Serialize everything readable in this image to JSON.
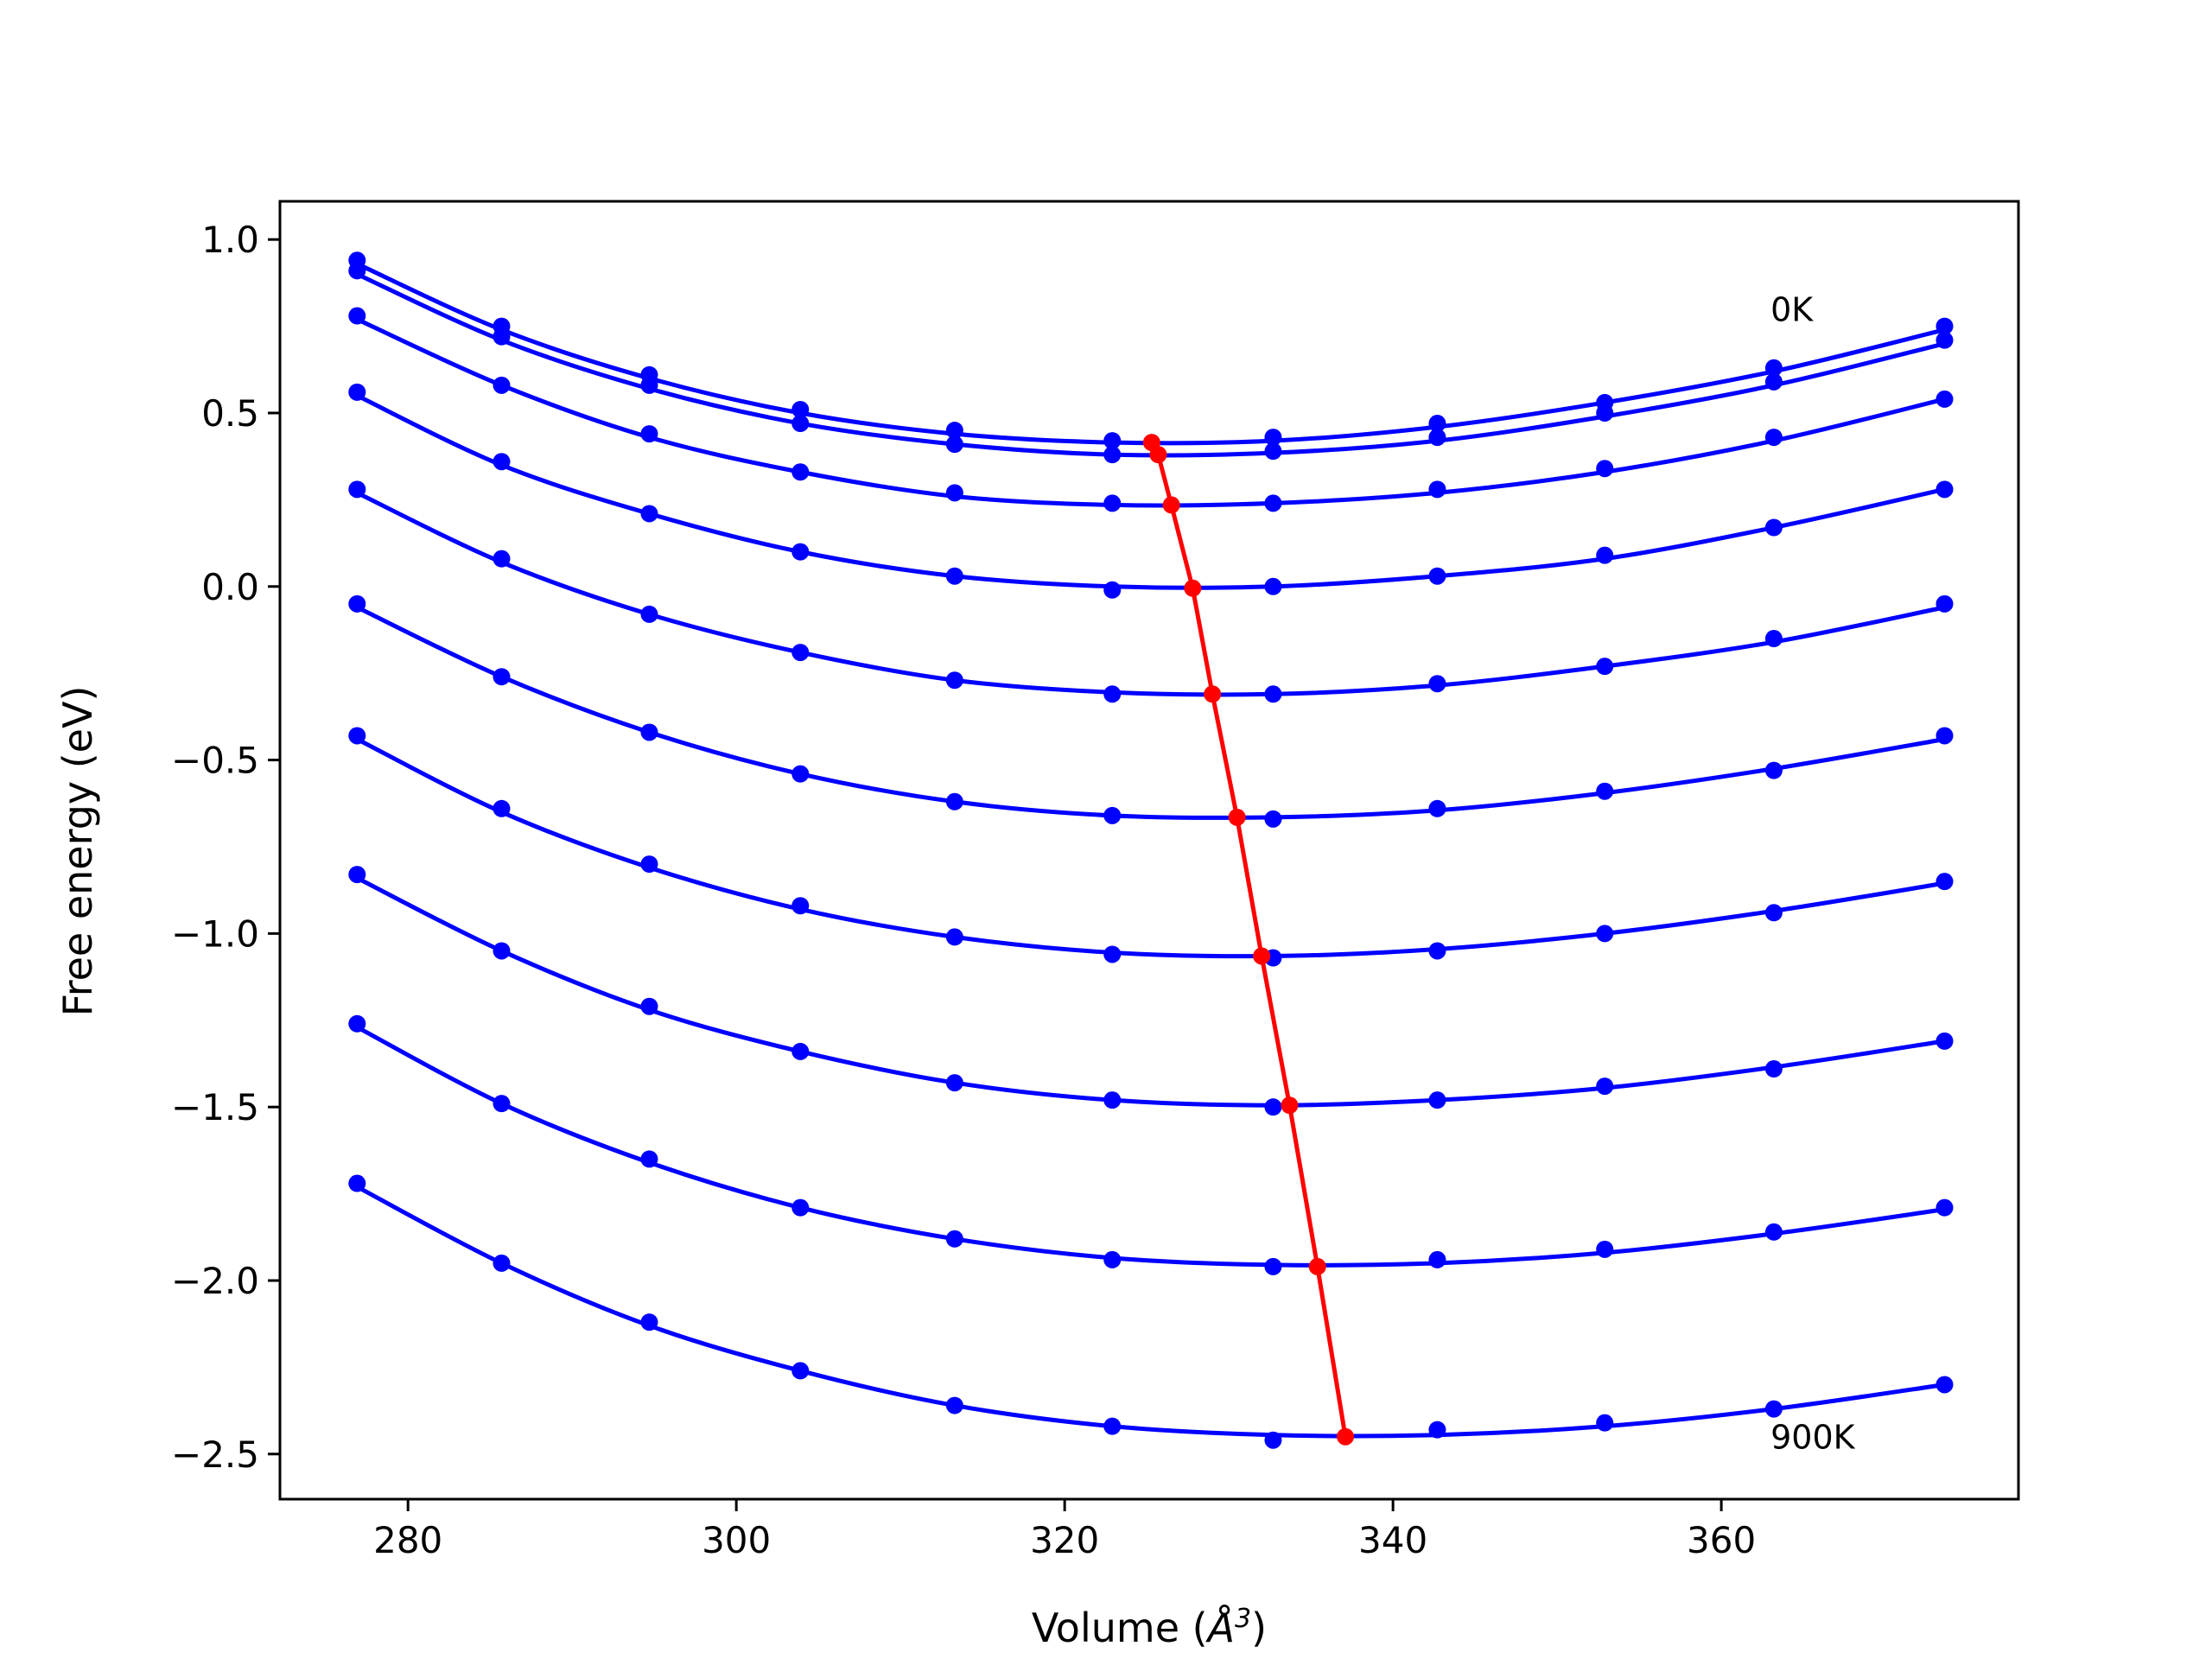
{
  "chart_data": {
    "type": "line",
    "xlabel_main": "Volume (",
    "xlabel_unit": "Å",
    "xlabel_exp": "3",
    "xlabel_close": ")",
    "ylabel": "Free energy (eV)",
    "xlim": [
      272.2,
      378.1
    ],
    "ylim": [
      -2.63,
      1.11
    ],
    "xticks": [
      280,
      300,
      320,
      340,
      360
    ],
    "xtick_labels": [
      "280",
      "300",
      "320",
      "340",
      "360"
    ],
    "yticks": [
      1.0,
      0.5,
      0.0,
      -0.5,
      -1.0,
      -1.5,
      -2.0,
      -2.5
    ],
    "ytick_labels": [
      "1.0",
      "0.5",
      "0.0",
      "−0.5",
      "−1.0",
      "−1.5",
      "−2.0",
      "−2.5"
    ],
    "grid": false,
    "annotations": [
      {
        "text": "0K",
        "x": 363.0,
        "y": 0.8
      },
      {
        "text": "900K",
        "x": 363.0,
        "y": -2.45
      }
    ],
    "series_color": "#0000ff",
    "min_color": "#ff0000",
    "x": [
      276.9,
      285.7,
      294.7,
      303.9,
      313.3,
      322.9,
      332.7,
      342.7,
      352.9,
      363.2,
      373.6
    ],
    "series": [
      {
        "values": [
          0.94,
          0.75,
          0.61,
          0.51,
          0.45,
          0.42,
          0.43,
          0.47,
          0.53,
          0.63,
          0.75
        ],
        "fit": [
          0.93,
          0.74,
          0.6,
          0.5,
          0.44,
          0.415,
          0.42,
          0.46,
          0.53,
          0.62,
          0.74
        ]
      },
      {
        "values": [
          0.91,
          0.72,
          0.58,
          0.47,
          0.41,
          0.38,
          0.39,
          0.43,
          0.5,
          0.59,
          0.71
        ],
        "fit": [
          0.9,
          0.71,
          0.57,
          0.47,
          0.41,
          0.38,
          0.385,
          0.42,
          0.49,
          0.58,
          0.7
        ]
      },
      {
        "values": [
          0.78,
          0.58,
          0.44,
          0.33,
          0.27,
          0.24,
          0.24,
          0.28,
          0.34,
          0.43,
          0.54
        ],
        "fit": [
          0.77,
          0.58,
          0.43,
          0.33,
          0.26,
          0.235,
          0.24,
          0.27,
          0.33,
          0.42,
          0.54
        ]
      },
      {
        "values": [
          0.56,
          0.36,
          0.21,
          0.1,
          0.03,
          -0.01,
          0.0,
          0.03,
          0.09,
          0.17,
          0.28
        ],
        "fit": [
          0.55,
          0.35,
          0.21,
          0.1,
          0.03,
          0.0,
          0.0,
          0.03,
          0.08,
          0.17,
          0.28
        ]
      },
      {
        "values": [
          0.28,
          0.08,
          -0.08,
          -0.19,
          -0.27,
          -0.31,
          -0.31,
          -0.28,
          -0.23,
          -0.15,
          -0.05
        ],
        "fit": [
          0.27,
          0.07,
          -0.08,
          -0.19,
          -0.27,
          -0.305,
          -0.31,
          -0.285,
          -0.23,
          -0.16,
          -0.06
        ]
      },
      {
        "values": [
          -0.05,
          -0.26,
          -0.42,
          -0.54,
          -0.62,
          -0.66,
          -0.67,
          -0.64,
          -0.59,
          -0.53,
          -0.43
        ],
        "fit": [
          -0.06,
          -0.26,
          -0.42,
          -0.54,
          -0.62,
          -0.66,
          -0.665,
          -0.645,
          -0.595,
          -0.525,
          -0.44
        ]
      },
      {
        "values": [
          -0.43,
          -0.64,
          -0.8,
          -0.92,
          -1.01,
          -1.06,
          -1.07,
          -1.05,
          -1.0,
          -0.94,
          -0.85
        ],
        "fit": [
          -0.44,
          -0.65,
          -0.81,
          -0.93,
          -1.01,
          -1.055,
          -1.065,
          -1.045,
          -1.0,
          -0.935,
          -0.855
        ]
      },
      {
        "values": [
          -0.83,
          -1.05,
          -1.21,
          -1.34,
          -1.43,
          -1.48,
          -1.5,
          -1.48,
          -1.44,
          -1.39,
          -1.31
        ],
        "fit": [
          -0.84,
          -1.05,
          -1.22,
          -1.34,
          -1.43,
          -1.48,
          -1.495,
          -1.48,
          -1.445,
          -1.385,
          -1.31
        ]
      },
      {
        "values": [
          -1.26,
          -1.49,
          -1.65,
          -1.79,
          -1.88,
          -1.94,
          -1.96,
          -1.94,
          -1.91,
          -1.86,
          -1.79
        ],
        "fit": [
          -1.27,
          -1.49,
          -1.66,
          -1.79,
          -1.88,
          -1.935,
          -1.955,
          -1.95,
          -1.92,
          -1.865,
          -1.795
        ]
      },
      {
        "values": [
          -1.72,
          -1.95,
          -2.12,
          -2.26,
          -2.36,
          -2.42,
          -2.46,
          -2.43,
          -2.41,
          -2.37,
          -2.3
        ],
        "fit": [
          -1.73,
          -1.95,
          -2.13,
          -2.26,
          -2.36,
          -2.42,
          -2.445,
          -2.445,
          -2.42,
          -2.37,
          -2.3
        ]
      }
    ],
    "minima": {
      "x": [
        325.3,
        325.7,
        326.5,
        327.8,
        329.0,
        330.5,
        332.0,
        333.7,
        335.4,
        337.1
      ],
      "y": [
        0.415,
        0.38,
        0.235,
        -0.005,
        -0.31,
        -0.665,
        -1.065,
        -1.495,
        -1.96,
        -2.45
      ]
    }
  }
}
